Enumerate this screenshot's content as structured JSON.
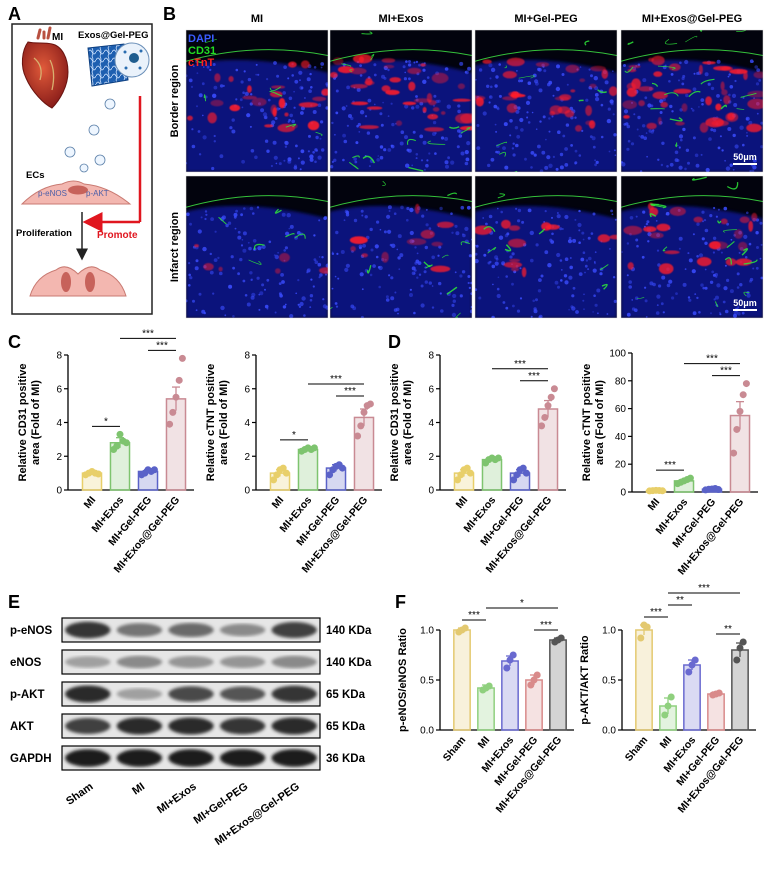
{
  "panels": {
    "a": "A",
    "b": "B",
    "c": "C",
    "d": "D",
    "e": "E",
    "f": "F"
  },
  "schematic": {
    "mi_label": "MI",
    "gel_label": "Exos@Gel-PEG",
    "ecs_label": "ECs",
    "peNOS_label": "p-eNOS",
    "pAKT_label": "p-AKT",
    "proliferation_label": "Proliferation",
    "promote_label": "Promote"
  },
  "microscopy": {
    "groups": [
      "MI",
      "MI+Exos",
      "MI+Gel-PEG",
      "MI+Exos@Gel-PEG"
    ],
    "rows": [
      "Border region",
      "Infarct region"
    ],
    "stains": [
      "DAPI",
      "CD31",
      "cTnT"
    ],
    "stain_colors": [
      "#3a5cff",
      "#22dd22",
      "#ff2222"
    ],
    "scale_bar": "50μm"
  },
  "groups4": [
    "MI",
    "MI+Exos",
    "MI+Gel-PEG",
    "MI+Exos@Gel-PEG"
  ],
  "groups5": [
    "Sham",
    "MI",
    "MI+Exos",
    "MI+Gel-PEG",
    "MI+Exos@Gel-PEG"
  ],
  "colors": {
    "sham": "#d9c160",
    "mi": "#e8cf6a",
    "exos": "#7ec46f",
    "gel": "#5a62c8",
    "combo": "#c98a93",
    "combo_dark": "#555555"
  },
  "chart_data": [
    {
      "id": "C-left",
      "type": "bar",
      "ylabel": "Relative CD31 positive area (Fold of MI)",
      "ylim": [
        0,
        8
      ],
      "yticks": [
        0,
        2,
        4,
        6,
        8
      ],
      "categories": [
        "MI",
        "MI+Exos",
        "MI+Gel-PEG",
        "MI+Exos@Gel-PEG"
      ],
      "values": [
        1.0,
        2.8,
        1.1,
        5.4
      ],
      "errors": [
        0.1,
        0.3,
        0.1,
        0.7
      ],
      "points": [
        [
          0.9,
          1.0,
          1.1,
          1.0,
          0.95
        ],
        [
          2.4,
          2.6,
          3.3,
          2.9,
          2.8
        ],
        [
          0.9,
          1.0,
          1.2,
          1.1,
          1.2
        ],
        [
          3.9,
          4.6,
          5.5,
          6.5,
          7.8
        ]
      ],
      "significance": [
        {
          "a": 0,
          "b": 1,
          "label": "*"
        },
        {
          "a": 2,
          "b": 3,
          "label": "***"
        },
        {
          "a": 1,
          "b": 3,
          "label": "***"
        }
      ]
    },
    {
      "id": "C-right",
      "type": "bar",
      "ylabel": "Relative cTNT positive area (Fold of MI)",
      "ylim": [
        0,
        8
      ],
      "yticks": [
        0,
        2,
        4,
        6,
        8
      ],
      "categories": [
        "MI",
        "MI+Exos",
        "MI+Gel-PEG",
        "MI+Exos@Gel-PEG"
      ],
      "values": [
        1.0,
        2.4,
        1.3,
        4.3
      ],
      "errors": [
        0.2,
        0.1,
        0.2,
        0.5
      ],
      "points": [
        [
          0.6,
          0.9,
          1.2,
          1.3,
          1.0
        ],
        [
          2.3,
          2.4,
          2.5,
          2.4,
          2.5
        ],
        [
          0.9,
          1.2,
          1.4,
          1.5,
          1.3
        ],
        [
          3.2,
          3.8,
          4.6,
          5.0,
          5.1
        ]
      ],
      "significance": [
        {
          "a": 0,
          "b": 1,
          "label": "*"
        },
        {
          "a": 2,
          "b": 3,
          "label": "***"
        },
        {
          "a": 1,
          "b": 3,
          "label": "***"
        }
      ]
    },
    {
      "id": "D-left",
      "type": "bar",
      "ylabel": "Relative CD31 positive area (Fold of MI)",
      "ylim": [
        0,
        8
      ],
      "yticks": [
        0,
        2,
        4,
        6,
        8
      ],
      "categories": [
        "MI",
        "MI+Exos",
        "MI+Gel-PEG",
        "MI+Exos@Gel-PEG"
      ],
      "values": [
        1.0,
        1.8,
        1.0,
        4.8
      ],
      "errors": [
        0.2,
        0.1,
        0.2,
        0.5
      ],
      "points": [
        [
          0.6,
          0.9,
          1.2,
          1.3,
          1.0
        ],
        [
          1.6,
          1.8,
          1.9,
          1.8,
          1.9
        ],
        [
          0.6,
          0.9,
          1.2,
          1.3,
          1.0
        ],
        [
          3.8,
          4.3,
          5.0,
          5.5,
          6.0
        ]
      ],
      "significance": [
        {
          "a": 2,
          "b": 3,
          "label": "***"
        },
        {
          "a": 1,
          "b": 3,
          "label": "***"
        }
      ]
    },
    {
      "id": "D-right",
      "type": "bar",
      "ylabel": "Relative cTNT positive area (Fold of MI)",
      "ylim": [
        0,
        100
      ],
      "yticks": [
        0,
        20,
        40,
        60,
        80,
        100
      ],
      "categories": [
        "MI",
        "MI+Exos",
        "MI+Gel-PEG",
        "MI+Exos@Gel-PEG"
      ],
      "values": [
        1.0,
        8.0,
        2.0,
        55.0
      ],
      "errors": [
        0.3,
        1.0,
        0.3,
        10.0
      ],
      "points": [
        [
          0.8,
          1.0,
          1.2,
          1.1,
          0.9
        ],
        [
          6.0,
          7.0,
          8.0,
          9.0,
          10.0
        ],
        [
          1.5,
          2.0,
          2.2,
          2.5,
          1.8
        ],
        [
          28.0,
          45.0,
          58.0,
          70.0,
          78.0
        ]
      ],
      "significance": [
        {
          "a": 0,
          "b": 1,
          "label": "***"
        },
        {
          "a": 2,
          "b": 3,
          "label": "***"
        },
        {
          "a": 1,
          "b": 3,
          "label": "***"
        }
      ]
    },
    {
      "id": "F-left",
      "type": "bar",
      "ylabel": "p-eNOS/eNOS Ratio",
      "ylim": [
        0,
        1.0
      ],
      "yticks": [
        0.0,
        0.5,
        1.0
      ],
      "categories": [
        "Sham",
        "MI",
        "MI+Exos",
        "MI+Gel-PEG",
        "MI+Exos@Gel-PEG"
      ],
      "values": [
        1.0,
        0.42,
        0.69,
        0.5,
        0.9
      ],
      "errors": [
        0.02,
        0.03,
        0.05,
        0.05,
        0.02
      ],
      "points": [
        [
          0.98,
          1.0,
          1.02
        ],
        [
          0.4,
          0.42,
          0.44
        ],
        [
          0.62,
          0.7,
          0.75
        ],
        [
          0.45,
          0.5,
          0.55
        ],
        [
          0.88,
          0.9,
          0.92
        ]
      ],
      "significance": [
        {
          "a": 0,
          "b": 1,
          "label": "***"
        },
        {
          "a": 3,
          "b": 4,
          "label": "***"
        },
        {
          "a": 1,
          "b": 4,
          "label": "*"
        }
      ]
    },
    {
      "id": "F-right",
      "type": "bar",
      "ylabel": "p-AKT/AKT Ratio",
      "ylim": [
        0,
        1.0
      ],
      "yticks": [
        0.0,
        0.5,
        1.0
      ],
      "categories": [
        "Sham",
        "MI",
        "MI+Exos",
        "MI+Gel-PEG",
        "MI+Exos@Gel-PEG"
      ],
      "values": [
        1.0,
        0.24,
        0.65,
        0.36,
        0.8
      ],
      "errors": [
        0.05,
        0.08,
        0.05,
        0.02,
        0.07
      ],
      "points": [
        [
          0.92,
          1.05,
          1.03
        ],
        [
          0.15,
          0.24,
          0.33
        ],
        [
          0.58,
          0.65,
          0.7
        ],
        [
          0.35,
          0.36,
          0.37
        ],
        [
          0.7,
          0.82,
          0.88
        ]
      ],
      "significance": [
        {
          "a": 0,
          "b": 1,
          "label": "***"
        },
        {
          "a": 1,
          "b": 2,
          "label": "**"
        },
        {
          "a": 3,
          "b": 4,
          "label": "**"
        },
        {
          "a": 1,
          "b": 4,
          "label": "***"
        }
      ]
    }
  ],
  "western": {
    "proteins": [
      "p-eNOS",
      "eNOS",
      "p-AKT",
      "AKT",
      "GAPDH"
    ],
    "sizes": [
      "140 KDa",
      "140 KDa",
      "65 KDa",
      "65 KDa",
      "36 KDa"
    ],
    "lanes": [
      "Sham",
      "MI",
      "MI+Exos",
      "MI+Gel-PEG",
      "MI+Exos@Gel-PEG"
    ],
    "band_intensity": [
      [
        0.85,
        0.55,
        0.6,
        0.45,
        0.8
      ],
      [
        0.35,
        0.45,
        0.4,
        0.4,
        0.45
      ],
      [
        0.9,
        0.35,
        0.75,
        0.7,
        0.85
      ],
      [
        0.8,
        0.9,
        0.9,
        0.85,
        0.9
      ],
      [
        0.95,
        0.95,
        0.95,
        0.95,
        0.95
      ]
    ]
  }
}
